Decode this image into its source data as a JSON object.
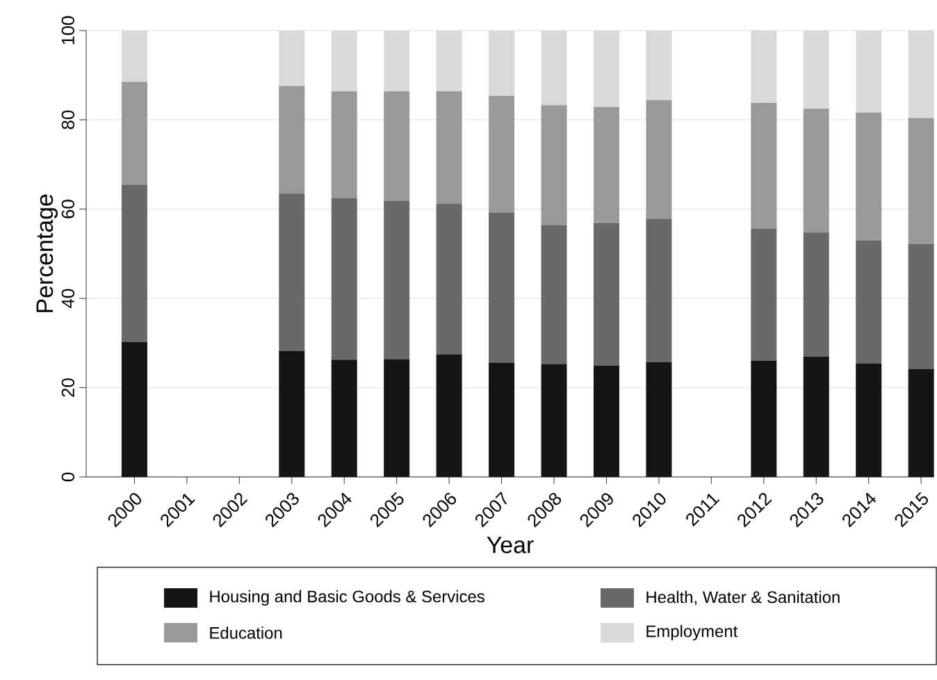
{
  "chart_data": {
    "type": "bar",
    "stacked": true,
    "xlabel": "Year",
    "ylabel": "Percentage",
    "categories": [
      "2000",
      "2001",
      "2002",
      "2003",
      "2004",
      "2005",
      "2006",
      "2007",
      "2008",
      "2009",
      "2010",
      "2011",
      "2012",
      "2013",
      "2014",
      "2015"
    ],
    "series": [
      {
        "name": "Housing and Basic Goods & Services",
        "color": "#151515",
        "values": [
          30.2,
          null,
          null,
          28.2,
          26.3,
          26.4,
          27.5,
          25.6,
          25.3,
          24.9,
          25.7,
          null,
          26.0,
          27.0,
          25.4,
          24.2
        ]
      },
      {
        "name": "Health, Water & Sanitation",
        "color": "#696969",
        "values": [
          35.3,
          null,
          null,
          35.3,
          36.2,
          35.5,
          33.8,
          33.6,
          31.1,
          32.0,
          32.1,
          null,
          29.6,
          27.8,
          27.6,
          28.0
        ]
      },
      {
        "name": "Education",
        "color": "#999999",
        "values": [
          23.0,
          null,
          null,
          24.1,
          23.9,
          24.5,
          25.1,
          26.2,
          26.9,
          26.0,
          26.6,
          null,
          28.2,
          27.7,
          28.6,
          28.2
        ]
      },
      {
        "name": "Employment",
        "color": "#d9d9d9",
        "values": [
          11.5,
          null,
          null,
          12.4,
          13.6,
          13.6,
          13.6,
          14.6,
          16.7,
          17.1,
          15.6,
          null,
          16.2,
          17.5,
          18.4,
          19.6
        ]
      }
    ],
    "ylim": [
      0,
      100
    ],
    "yticks": [
      0,
      20,
      40,
      60,
      80,
      100
    ],
    "grid": "y",
    "legend": "bottom"
  }
}
